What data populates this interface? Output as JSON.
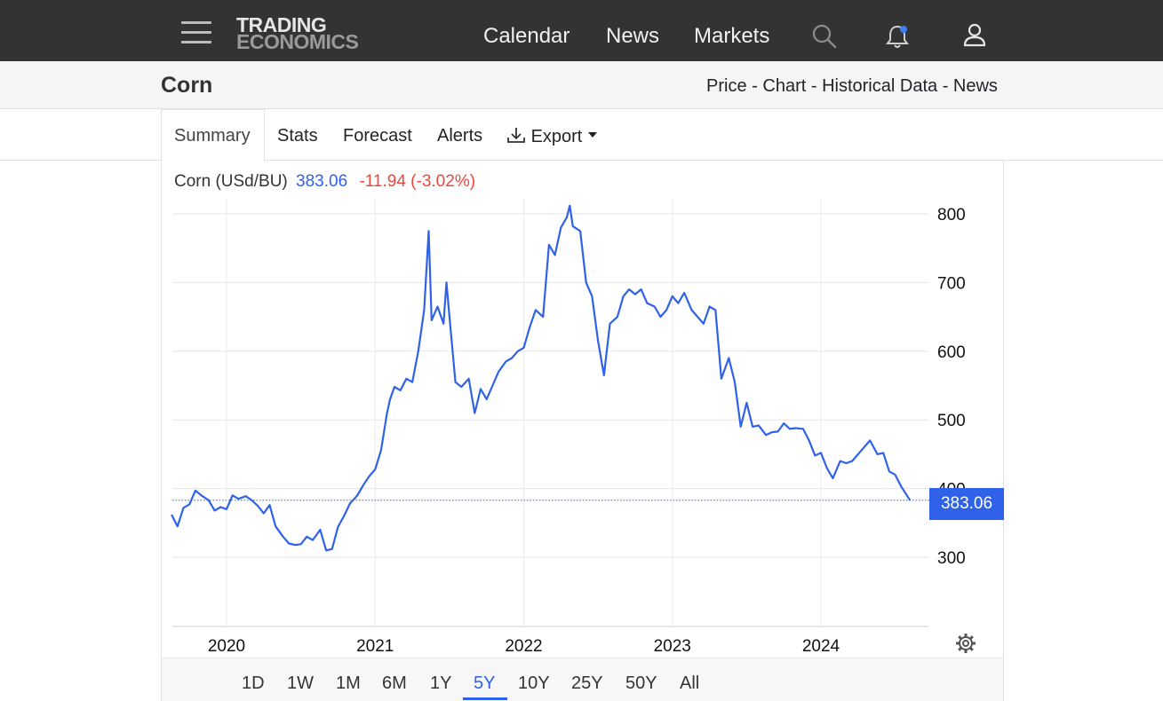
{
  "nav": {
    "logo_line1": "TRADING",
    "logo_line2": "ECONOMICS",
    "links": [
      "Calendar",
      "News",
      "Markets"
    ],
    "icons": [
      "menu-icon",
      "search-icon",
      "bell-icon",
      "user-icon"
    ]
  },
  "header": {
    "title": "Corn",
    "breadcrumbs": [
      "Price",
      "Chart",
      "Historical Data",
      "News"
    ],
    "separator": "-"
  },
  "tabs": {
    "items": [
      "Summary",
      "Stats",
      "Forecast",
      "Alerts",
      "Export"
    ],
    "active": "Summary"
  },
  "quote": {
    "name": "Corn (USd/BU)",
    "price": "383.06",
    "change": "-11.94 (-3.02%)"
  },
  "colors": {
    "line": "#2f62e8",
    "negative": "#e8483c",
    "navbar": "#333333"
  },
  "ranges": {
    "items": [
      "1D",
      "1W",
      "1M",
      "6M",
      "1Y",
      "5Y",
      "10Y",
      "25Y",
      "50Y",
      "All"
    ],
    "active": "5Y"
  },
  "chart_data": {
    "type": "line",
    "title": "",
    "xlabel": "",
    "ylabel": "",
    "x_ticks": [
      "2020",
      "2021",
      "2022",
      "2023",
      "2024"
    ],
    "y_ticks": [
      300,
      400,
      500,
      600,
      700,
      800
    ],
    "ylim": [
      200,
      830
    ],
    "last_value_label": "383.06",
    "grid": true,
    "series": [
      {
        "values": [
          [
            2019.63,
            362
          ],
          [
            2019.67,
            345
          ],
          [
            2019.71,
            372
          ],
          [
            2019.75,
            377
          ],
          [
            2019.79,
            397
          ],
          [
            2019.83,
            390
          ],
          [
            2019.88,
            383
          ],
          [
            2019.92,
            368
          ],
          [
            2019.96,
            373
          ],
          [
            2020.0,
            370
          ],
          [
            2020.04,
            390
          ],
          [
            2020.08,
            385
          ],
          [
            2020.13,
            389
          ],
          [
            2020.17,
            383
          ],
          [
            2020.21,
            375
          ],
          [
            2020.25,
            364
          ],
          [
            2020.29,
            376
          ],
          [
            2020.33,
            345
          ],
          [
            2020.38,
            330
          ],
          [
            2020.42,
            320
          ],
          [
            2020.46,
            318
          ],
          [
            2020.5,
            319
          ],
          [
            2020.54,
            330
          ],
          [
            2020.58,
            325
          ],
          [
            2020.63,
            340
          ],
          [
            2020.67,
            310
          ],
          [
            2020.71,
            312
          ],
          [
            2020.75,
            344
          ],
          [
            2020.79,
            360
          ],
          [
            2020.83,
            378
          ],
          [
            2020.88,
            390
          ],
          [
            2020.92,
            405
          ],
          [
            2020.96,
            418
          ],
          [
            2021.0,
            428
          ],
          [
            2021.04,
            456
          ],
          [
            2021.08,
            510
          ],
          [
            2021.1,
            530
          ],
          [
            2021.13,
            548
          ],
          [
            2021.17,
            543
          ],
          [
            2021.21,
            560
          ],
          [
            2021.25,
            555
          ],
          [
            2021.29,
            600
          ],
          [
            2021.33,
            660
          ],
          [
            2021.36,
            775
          ],
          [
            2021.38,
            645
          ],
          [
            2021.42,
            665
          ],
          [
            2021.46,
            640
          ],
          [
            2021.48,
            700
          ],
          [
            2021.5,
            650
          ],
          [
            2021.54,
            555
          ],
          [
            2021.58,
            548
          ],
          [
            2021.63,
            560
          ],
          [
            2021.67,
            510
          ],
          [
            2021.71,
            545
          ],
          [
            2021.75,
            530
          ],
          [
            2021.79,
            550
          ],
          [
            2021.83,
            570
          ],
          [
            2021.88,
            585
          ],
          [
            2021.92,
            590
          ],
          [
            2021.96,
            600
          ],
          [
            2022.0,
            605
          ],
          [
            2022.04,
            635
          ],
          [
            2022.08,
            660
          ],
          [
            2022.13,
            650
          ],
          [
            2022.17,
            755
          ],
          [
            2022.21,
            740
          ],
          [
            2022.25,
            780
          ],
          [
            2022.29,
            795
          ],
          [
            2022.31,
            812
          ],
          [
            2022.33,
            782
          ],
          [
            2022.38,
            775
          ],
          [
            2022.42,
            700
          ],
          [
            2022.46,
            680
          ],
          [
            2022.5,
            615
          ],
          [
            2022.54,
            565
          ],
          [
            2022.58,
            640
          ],
          [
            2022.63,
            650
          ],
          [
            2022.67,
            680
          ],
          [
            2022.71,
            690
          ],
          [
            2022.75,
            683
          ],
          [
            2022.79,
            690
          ],
          [
            2022.83,
            670
          ],
          [
            2022.88,
            665
          ],
          [
            2022.92,
            650
          ],
          [
            2022.96,
            660
          ],
          [
            2023.0,
            680
          ],
          [
            2023.04,
            670
          ],
          [
            2023.08,
            685
          ],
          [
            2023.13,
            660
          ],
          [
            2023.17,
            650
          ],
          [
            2023.21,
            640
          ],
          [
            2023.25,
            665
          ],
          [
            2023.29,
            660
          ],
          [
            2023.33,
            560
          ],
          [
            2023.38,
            590
          ],
          [
            2023.42,
            555
          ],
          [
            2023.46,
            490
          ],
          [
            2023.5,
            525
          ],
          [
            2023.54,
            490
          ],
          [
            2023.58,
            492
          ],
          [
            2023.63,
            478
          ],
          [
            2023.67,
            482
          ],
          [
            2023.71,
            483
          ],
          [
            2023.75,
            495
          ],
          [
            2023.79,
            487
          ],
          [
            2023.83,
            488
          ],
          [
            2023.88,
            487
          ],
          [
            2023.92,
            470
          ],
          [
            2023.96,
            448
          ],
          [
            2024.0,
            452
          ],
          [
            2024.04,
            430
          ],
          [
            2024.08,
            415
          ],
          [
            2024.13,
            440
          ],
          [
            2024.17,
            437
          ],
          [
            2024.21,
            440
          ],
          [
            2024.25,
            450
          ],
          [
            2024.33,
            470
          ],
          [
            2024.38,
            450
          ],
          [
            2024.42,
            452
          ],
          [
            2024.46,
            425
          ],
          [
            2024.5,
            420
          ],
          [
            2024.54,
            403
          ],
          [
            2024.6,
            383
          ]
        ]
      }
    ]
  }
}
